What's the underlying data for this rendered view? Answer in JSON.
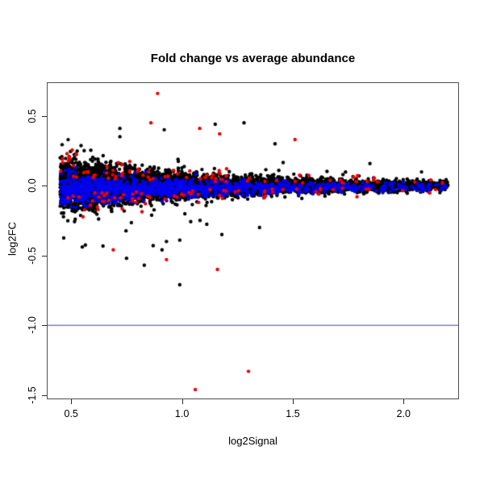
{
  "figure": {
    "background": "#ffffff",
    "axis_text_color": "#000000"
  },
  "chart_data": {
    "type": "scatter",
    "title": "Fold change vs average abundance",
    "xlabel": "log2Signal",
    "ylabel": "log2FC",
    "xlim": [
      0.39,
      2.25
    ],
    "ylim": [
      -1.53,
      0.74
    ],
    "xticks": [
      0.5,
      1.0,
      1.5,
      2.0
    ],
    "xtick_labels": [
      "0.5",
      "1.0",
      "1.5",
      "2.0"
    ],
    "yticks": [
      0.5,
      0.0,
      -0.5,
      -1.0,
      -1.5
    ],
    "ytick_labels": [
      "0.5",
      "0.0",
      "-0.5",
      "-1.0",
      "-1.5"
    ],
    "grid": false,
    "legend": "none",
    "point_radius_px": 2.2,
    "reference_line": {
      "orientation": "horizontal",
      "y": -1.0,
      "color": "#3a3ad0"
    },
    "data_x_range": [
      0.45,
      2.2
    ],
    "distribution_note": "MA-style plot: dense cloud centered on log2FC=0, vertical spread shrinking as log2Signal grows; blue control points ride inside the band (slightly below 0), red flagged points sit on the band fringes; procedurally regenerated from the parameters below plus the explicit outliers.",
    "spread_model": {
      "sd_base": 0.018,
      "sd_amp": 0.075,
      "sd_decay": 0.55,
      "x_decay_lambda": 1.2
    },
    "series": [
      {
        "name": "black-points",
        "kind": "core",
        "color": "#000000",
        "n": 4800,
        "seed": 101,
        "y_sd_scale": 1.0,
        "tail_fraction": 0.025,
        "tail_scale": 2.2,
        "y_clip": 0.48
      },
      {
        "name": "blue-points",
        "kind": "band",
        "color": "#0000ee",
        "n": 1150,
        "seed": 202,
        "y_sd_scale": 0.7,
        "y_mean_shift_sd": -0.4,
        "y_clip_sd": 2.3
      },
      {
        "name": "red-points",
        "kind": "fringe",
        "color": "#ee0000",
        "n": 150,
        "seed": 303,
        "y_offset_sd": 0.7,
        "y_sd_scale": 1.1,
        "y_clip": 0.42
      }
    ],
    "outliers": [
      {
        "color": "#000000",
        "points": [
          [
            0.72,
            0.41
          ],
          [
            0.92,
            0.4
          ],
          [
            1.15,
            0.44
          ],
          [
            1.28,
            0.45
          ],
          [
            1.42,
            0.3
          ],
          [
            0.75,
            -0.52
          ],
          [
            0.87,
            -0.43
          ],
          [
            0.91,
            -0.46
          ],
          [
            0.93,
            -0.4
          ],
          [
            0.99,
            -0.39
          ],
          [
            1.18,
            -0.35
          ],
          [
            0.83,
            -0.57
          ],
          [
            0.99,
            -0.71
          ],
          [
            1.35,
            -0.3
          ]
        ]
      },
      {
        "color": "#ee0000",
        "points": [
          [
            0.89,
            0.66
          ],
          [
            0.86,
            0.45
          ],
          [
            1.08,
            0.41
          ],
          [
            1.17,
            0.37
          ],
          [
            1.51,
            0.33
          ],
          [
            0.69,
            -0.46
          ],
          [
            0.93,
            -0.53
          ],
          [
            1.16,
            -0.6
          ],
          [
            1.3,
            -1.33
          ],
          [
            1.06,
            -1.46
          ]
        ]
      }
    ]
  }
}
